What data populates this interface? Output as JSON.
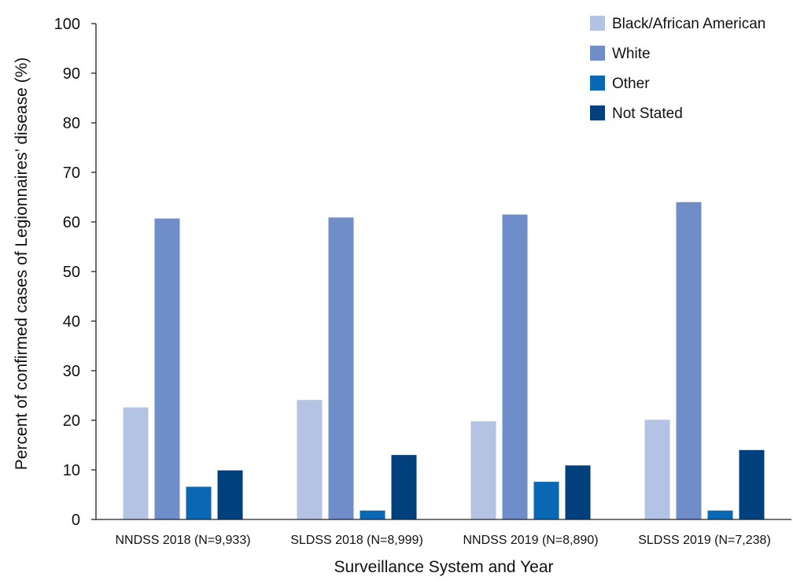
{
  "chart_data": {
    "type": "bar",
    "title": "",
    "xlabel": "Surveillance System and Year",
    "ylabel": "Percent of confirmed cases of Legionnaires’ disease  (%)",
    "ylim": [
      0,
      100
    ],
    "yticks": [
      0,
      10,
      20,
      30,
      40,
      50,
      60,
      70,
      80,
      90,
      100
    ],
    "grid": false,
    "legend": "top-right",
    "categories": [
      "NNDSS 2018 (N=9,933)",
      "SLDSS 2018 (N=8,999)",
      "NNDSS 2019 (N=8,890)",
      "SLDSS 2019 (N=7,238)"
    ],
    "series": [
      {
        "name": "Black/African American",
        "color": "#b4c2e4",
        "values": [
          22.6,
          24.1,
          19.8,
          20.1
        ]
      },
      {
        "name": "White",
        "color": "#6f8dc8",
        "values": [
          60.7,
          60.9,
          61.5,
          64.0
        ]
      },
      {
        "name": "Other",
        "color": "#0a67b4",
        "values": [
          6.6,
          1.8,
          7.6,
          1.8
        ]
      },
      {
        "name": "Not Stated",
        "color": "#023f7d",
        "values": [
          9.9,
          13.0,
          10.9,
          14.0
        ]
      }
    ]
  }
}
